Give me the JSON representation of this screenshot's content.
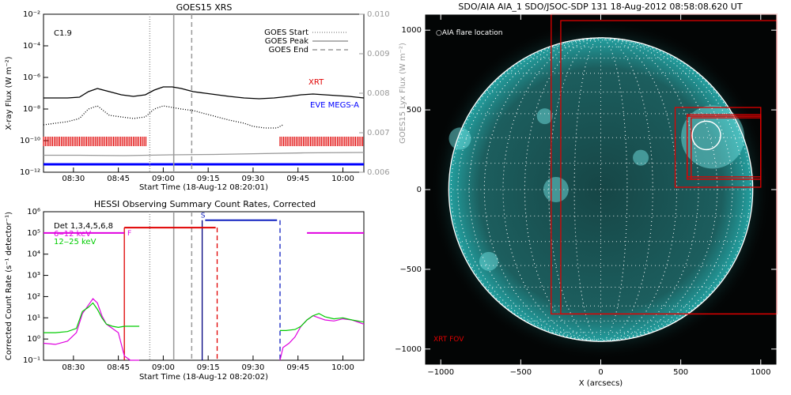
{
  "chart_data": [
    {
      "type": "line",
      "title": "GOES15 XRS",
      "annotation": "C1.9",
      "xlabel": "Start Time (18-Aug-12 08:20:01)",
      "ylabel": "X-ray Flux (W m⁻²)",
      "ylabel_right": "GOES15 Lyx Flux (W m⁻²)",
      "xlim": [
        18,
        125
      ],
      "x_ticks": [
        28,
        43,
        58,
        73,
        88,
        103,
        118
      ],
      "x_tick_labels": [
        "08:30",
        "08:45",
        "09:00",
        "09:15",
        "09:30",
        "09:45",
        "10:00"
      ],
      "y_scale": "log",
      "ylim": [
        -12,
        -2
      ],
      "y_ticks": [
        -12,
        -10,
        -8,
        -6,
        -4,
        -2
      ],
      "y_tick_labels": [
        "10⁻¹²",
        "10⁻¹⁰",
        "10⁻⁸",
        "10⁻⁶",
        "10⁻⁴",
        "10⁻²"
      ],
      "y2lim": [
        0.006,
        0.01
      ],
      "y2_ticks": [
        0.006,
        0.007,
        0.008,
        0.009,
        0.01
      ],
      "y2_tick_labels": [
        "0.006",
        "0.007",
        "0.008",
        "0.009",
        "0.010"
      ],
      "legend": {
        "placement": "top-right",
        "entries": [
          {
            "label": "GOES Start",
            "style": "dotted"
          },
          {
            "label": "GOES Peak",
            "style": "solid"
          },
          {
            "label": "GOES End",
            "style": "dashed"
          }
        ]
      },
      "markers": {
        "start": 53.5,
        "peak": 61.5,
        "end": 67.5
      },
      "labels": {
        "xrt": "XRT",
        "eve": "EVE MEGS-A"
      },
      "series": [
        {
          "id": "long",
          "color": "#000000",
          "style": "solid",
          "x": [
            18,
            22,
            26,
            30,
            33,
            36,
            40,
            44,
            48,
            52,
            55,
            58,
            61,
            64,
            68,
            72,
            76,
            80,
            85,
            90,
            95,
            100,
            104,
            108,
            112,
            116,
            120,
            125
          ],
          "y": [
            -7.3,
            -7.3,
            -7.3,
            -7.25,
            -6.9,
            -6.7,
            -6.9,
            -7.1,
            -7.2,
            -7.1,
            -6.8,
            -6.6,
            -6.6,
            -6.7,
            -6.9,
            -7.0,
            -7.1,
            -7.2,
            -7.3,
            -7.35,
            -7.3,
            -7.2,
            -7.1,
            -7.05,
            -7.1,
            -7.15,
            -7.2,
            -7.3
          ]
        },
        {
          "id": "short",
          "color": "#000000",
          "style": "dotted",
          "x": [
            18,
            22,
            26,
            30,
            33,
            36,
            40,
            44,
            48,
            52,
            55,
            58,
            61,
            64,
            68,
            72,
            76,
            80,
            85,
            88,
            92,
            96,
            98
          ],
          "y": [
            -9.0,
            -8.9,
            -8.8,
            -8.6,
            -8.0,
            -7.8,
            -8.4,
            -8.5,
            -8.6,
            -8.5,
            -8.0,
            -7.8,
            -7.9,
            -8.0,
            -8.1,
            -8.3,
            -8.5,
            -8.7,
            -8.9,
            -9.1,
            -9.2,
            -9.2,
            -9.0
          ]
        },
        {
          "id": "lyman",
          "color": "#999999",
          "style": "solid",
          "axis": "right",
          "x": [
            18,
            30,
            45,
            60,
            75,
            90,
            105,
            125
          ],
          "y": [
            0.00643,
            0.00643,
            0.00642,
            0.00644,
            0.00645,
            0.00647,
            0.00649,
            0.0065
          ]
        }
      ],
      "xrt_intervals": [
        [
          18,
          52.5
        ],
        [
          97,
          125
        ]
      ],
      "eve_interval": [
        18,
        125
      ]
    },
    {
      "type": "line",
      "title": "HESSI Observing Summary Count Rates, Corrected",
      "xlabel": "Start Time (18-Aug-12 08:20:02)",
      "ylabel": "Corrected Count Rate (s⁻¹ detector⁻¹)",
      "xlim": [
        18,
        125
      ],
      "x_ticks": [
        28,
        43,
        58,
        73,
        88,
        103,
        118
      ],
      "x_tick_labels": [
        "08:30",
        "08:45",
        "09:00",
        "09:15",
        "09:30",
        "09:45",
        "10:00"
      ],
      "y_scale": "log",
      "ylim": [
        -1,
        6
      ],
      "y_ticks": [
        -1,
        0,
        1,
        2,
        3,
        4,
        5,
        6
      ],
      "y_tick_labels": [
        "10⁻¹",
        "10⁰",
        "10¹",
        "10²",
        "10³",
        "10⁴",
        "10⁵",
        "10⁶"
      ],
      "legend_entries": [
        {
          "label": "Det 1,3,4,5,6,8",
          "color": "#000000"
        },
        {
          "label": "6‒12 keV",
          "color": "#e000e0"
        },
        {
          "label": "12‒25 keV",
          "color": "#00cc00"
        }
      ],
      "flag_labels": {
        "f": "F",
        "s": "S"
      },
      "markers": {
        "start": 53.5,
        "peak": 61.5,
        "end": 67.5,
        "red_solid": 45,
        "red_dashed": 76,
        "navy": 71,
        "blue_dashed": 97
      },
      "attenuator_bars": [
        {
          "color": "#e000e0",
          "x": [
            18,
            45
          ],
          "y": 5
        },
        {
          "color": "#e00000",
          "x": [
            45,
            75.5
          ],
          "y": 5.25
        },
        {
          "color": "#1020c0",
          "x": [
            72,
            96
          ],
          "y": 5.6
        },
        {
          "color": "#e000e0",
          "x": [
            106,
            125
          ],
          "y": 5
        }
      ],
      "series": [
        {
          "name": "6‒12 keV",
          "color": "#e000e0",
          "x": [
            18,
            22,
            26,
            29,
            31,
            33,
            34.5,
            36,
            37.5,
            39,
            41,
            43,
            45,
            47,
            49,
            50
          ],
          "y": [
            -0.2,
            -0.25,
            -0.1,
            0.3,
            1.2,
            1.6,
            1.9,
            1.7,
            1.1,
            0.7,
            0.5,
            0.3,
            -0.8,
            -1,
            -1,
            -1
          ]
        },
        {
          "name": "12‒25 keV",
          "color": "#00cc00",
          "x": [
            18,
            22,
            26,
            29,
            31,
            33,
            34.5,
            36,
            37.5,
            39,
            41,
            43,
            45,
            47,
            50
          ],
          "y": [
            0.3,
            0.3,
            0.35,
            0.5,
            1.3,
            1.5,
            1.7,
            1.4,
            1.0,
            0.7,
            0.6,
            0.55,
            0.6,
            0.6,
            0.6
          ]
        },
        {
          "name": "6‒12 keV",
          "color": "#e000e0",
          "x": [
            97,
            98,
            100,
            102,
            104,
            106,
            108,
            110,
            112,
            115,
            118,
            121,
            125
          ],
          "y": [
            -1,
            -0.4,
            -0.2,
            0.1,
            0.6,
            0.9,
            1.1,
            1.0,
            0.9,
            0.85,
            0.95,
            0.9,
            0.7
          ]
        },
        {
          "name": "12‒25 keV",
          "color": "#00cc00",
          "x": [
            97,
            99,
            102,
            104,
            106,
            108,
            110,
            112,
            115,
            118,
            121,
            125
          ],
          "y": [
            0.4,
            0.4,
            0.45,
            0.6,
            0.9,
            1.1,
            1.2,
            1.05,
            0.95,
            1.0,
            0.9,
            0.8
          ]
        }
      ]
    },
    {
      "type": "scatter",
      "title": "SDO/AIA AIA_1 SDO/JSOC-SDP 131 18-Aug-2012 08:58:08.620 UT",
      "xlabel": "X (arcsecs)",
      "ylabel": "",
      "xlim": [
        -1100,
        1100
      ],
      "ylim": [
        -1100,
        1100
      ],
      "x_ticks": [
        -1000,
        -500,
        0,
        500,
        1000
      ],
      "x_tick_labels": [
        "−1000",
        "−500",
        "0",
        "500",
        "1000"
      ],
      "y_ticks": [
        -1000,
        -500,
        0,
        500,
        1000
      ],
      "y_tick_labels": [
        "−1000",
        "−500",
        "0",
        "500",
        "1000"
      ],
      "annotations": {
        "flare_label": "AIA flare location",
        "xrt_fov": "XRT FOV"
      },
      "background": "#030505",
      "disk_color": "#23a0a0",
      "solar_radius": 950,
      "flare_location": [
        660,
        340
      ],
      "xrt_boxes": [
        [
          -310,
          -780,
          1100,
          1100
        ],
        [
          -250,
          -780,
          1100,
          1060
        ],
        [
          465,
          15,
          1000,
          515
        ],
        [
          540,
          65,
          1000,
          470
        ],
        [
          565,
          65,
          1000,
          450
        ],
        [
          540,
          80,
          1000,
          460
        ]
      ]
    }
  ]
}
